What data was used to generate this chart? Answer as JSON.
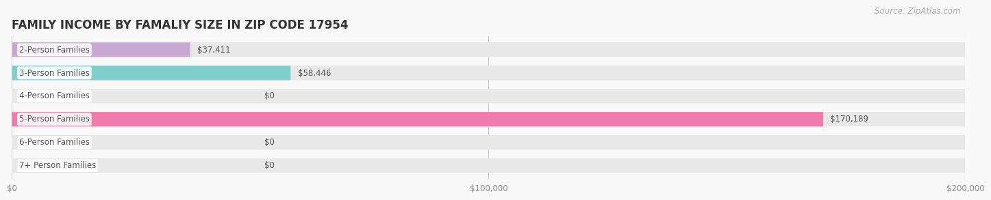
{
  "title": "FAMILY INCOME BY FAMALIY SIZE IN ZIP CODE 17954",
  "source": "Source: ZipAtlas.com",
  "categories": [
    "2-Person Families",
    "3-Person Families",
    "4-Person Families",
    "5-Person Families",
    "6-Person Families",
    "7+ Person Families"
  ],
  "values": [
    37411,
    58446,
    0,
    170189,
    0,
    0
  ],
  "bar_colors": [
    "#c9a8d4",
    "#7fcfce",
    "#a8aede",
    "#f07aaa",
    "#f7c896",
    "#f5a8a0"
  ],
  "bar_bg_color": "#e8e8e8",
  "xlim": [
    0,
    200000
  ],
  "xticks": [
    0,
    100000,
    200000
  ],
  "xtick_labels": [
    "$0",
    "$100,000",
    "$200,000"
  ],
  "value_labels": [
    "$37,411",
    "$58,446",
    "$0",
    "$170,189",
    "$0",
    "$0"
  ],
  "background_color": "#f9f9f9",
  "title_fontsize": 12,
  "label_fontsize": 8.5,
  "value_fontsize": 8.5,
  "source_fontsize": 8.5
}
